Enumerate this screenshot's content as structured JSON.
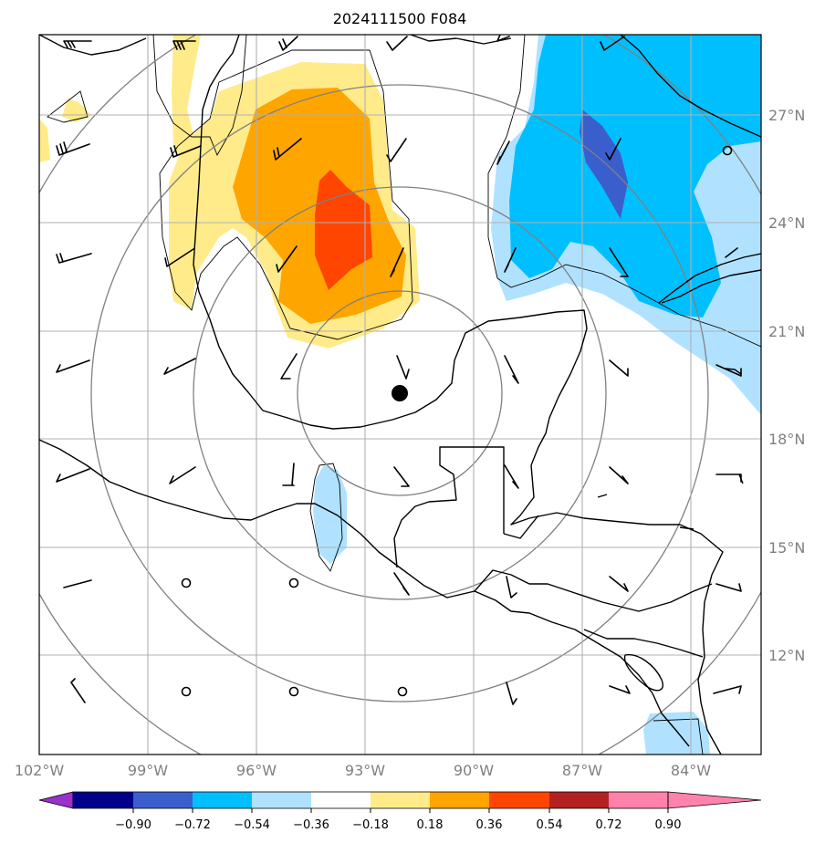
{
  "title": "2024111500 F084",
  "lat_labels": [
    "27°N",
    "24°N",
    "21°N",
    "18°N",
    "15°N",
    "12°N"
  ],
  "lon_labels": [
    "102°W",
    "99°W",
    "96°W",
    "93°W",
    "90°W",
    "87°W",
    "84°W"
  ],
  "colorbar": {
    "ticks": [
      "−0.90",
      "−0.72",
      "−0.54",
      "−0.36",
      "−0.18",
      "0.18",
      "0.36",
      "0.54",
      "0.72",
      "0.90"
    ],
    "colors": [
      "#9932cc",
      "#00008b",
      "#3a5fcd",
      "#00bfff",
      "#b0e2ff",
      "#ffffff",
      "#ffeb8a",
      "#ffa500",
      "#ff4500",
      "#b22222",
      "#ff82ab"
    ]
  },
  "map": {
    "extent": {
      "lon_min": -102,
      "lon_max": -82,
      "lat_min": 9,
      "lat_max": 29
    },
    "center": {
      "lon": -92,
      "lat": 19.2
    },
    "land_outline_color": "#000000",
    "grid_color": "#b0b0b0",
    "ring_color": "#808080"
  }
}
